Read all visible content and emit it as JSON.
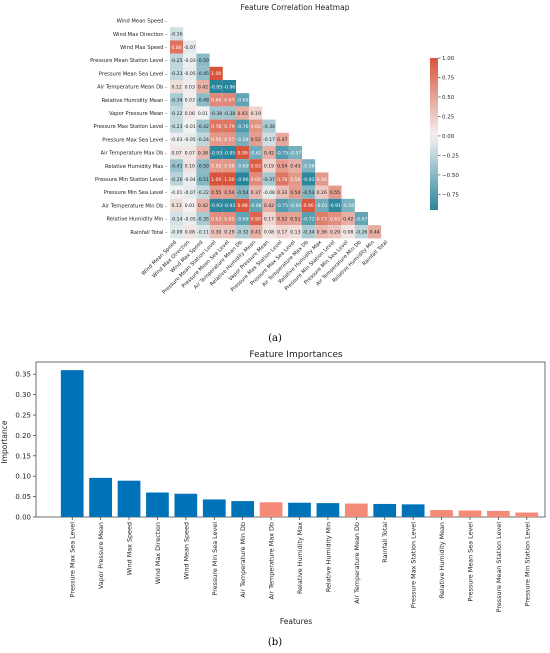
{
  "captions": {
    "a": "(a)",
    "b": "(b)"
  },
  "chart_data": [
    {
      "type": "heatmap",
      "title": "Feature Correlation Heatmap",
      "triangle": "lower",
      "colormap": {
        "low": "#1e7f97",
        "mid": "#f2f2f2",
        "high": "#d9533a"
      },
      "colorbar_range": [
        -0.95,
        1.0
      ],
      "colorbar_ticks": [
        "1.00",
        "0.75",
        "0.50",
        "0.25",
        "0.00",
        "−0.25",
        "−0.50",
        "−0.75"
      ],
      "colorbar_tick_values": [
        1.0,
        0.75,
        0.5,
        0.25,
        0.0,
        -0.25,
        -0.5,
        -0.75
      ],
      "features": [
        "Wind Mean Speed",
        "Wind Max Direction",
        "Wind Max Speed",
        "Pressure Mean Station Level",
        "Pressure Mean Sea Level",
        "Air Temperature Mean Db",
        "Relative Humidity Mean",
        "Vapor Pressure Mean",
        "Pressure Max Station Level",
        "Pressure Max Sea Level",
        "Air Temperature Max Db",
        "Relative Humidity Max",
        "Pressure Min Station Level",
        "Pressure Min Sea Level",
        "Air Temperature Min Db",
        "Relative Humidity Min",
        "Rainfall Total"
      ],
      "matrix": [
        [],
        [
          -0.16
        ],
        [
          0.8,
          -0.07
        ],
        [
          -0.25,
          -0.03,
          -0.5
        ],
        [
          -0.23,
          -0.05,
          -0.45,
          1.0
        ],
        [
          0.12,
          0.03,
          0.42,
          -0.95,
          -0.96
        ],
        [
          -0.34,
          0.03,
          -0.48,
          0.66,
          0.67,
          -0.69
        ],
        [
          -0.22,
          0.06,
          0.01,
          -0.38,
          -0.38,
          0.43,
          0.19
        ],
        [
          -0.23,
          -0.01,
          -0.42,
          0.78,
          0.79,
          -0.76,
          0.6,
          -0.34
        ],
        [
          -0.03,
          -0.05,
          -0.24,
          0.56,
          0.57,
          -0.58,
          0.52,
          -0.17,
          0.47
        ],
        [
          0.07,
          0.07,
          0.38,
          -0.93,
          -0.95,
          0.99,
          -0.62,
          0.42,
          -0.75,
          -0.57
        ],
        [
          -0.41,
          0.1,
          -0.5,
          0.56,
          0.58,
          -0.6,
          0.93,
          0.19,
          0.54,
          0.43,
          -0.56
        ],
        [
          -0.26,
          -0.04,
          -0.51,
          1.0,
          1.0,
          -0.96,
          0.66,
          -0.37,
          0.78,
          0.56,
          -0.93,
          0.56
        ],
        [
          -0.01,
          -0.07,
          -0.22,
          0.55,
          0.54,
          -0.54,
          0.37,
          -0.08,
          0.33,
          0.54,
          -0.53,
          0.26,
          0.55
        ],
        [
          0.13,
          0.01,
          0.42,
          -0.93,
          -0.93,
          0.98,
          -0.68,
          0.42,
          -0.75,
          -0.6,
          0.96,
          -0.61,
          -0.91,
          -0.56
        ],
        [
          -0.14,
          -0.05,
          -0.35,
          0.63,
          0.65,
          -0.69,
          0.9,
          0.17,
          0.52,
          0.51,
          -0.72,
          0.73,
          0.63,
          0.42,
          -0.67
        ],
        [
          -0.09,
          0.08,
          -0.11,
          0.3,
          0.29,
          -0.32,
          0.41,
          0.08,
          0.17,
          0.13,
          -0.34,
          0.36,
          0.29,
          0.08,
          -0.26,
          0.44
        ]
      ]
    },
    {
      "type": "bar",
      "title": "Feature Importances",
      "xlabel": "Features",
      "ylabel": "Importance",
      "ylim": [
        0,
        0.38
      ],
      "yticks": [
        0.0,
        0.05,
        0.1,
        0.15,
        0.2,
        0.25,
        0.3,
        0.35
      ],
      "colors": {
        "blue": "#0072b8",
        "salmon": "#f58a78"
      },
      "categories": [
        "Pressure Max Sea Level",
        "Vapor Pressure Mean",
        "Wind Max Speed",
        "Wind Max Direction",
        "Wind Mean Speed",
        "Pressure Min Sea Level",
        "Air Temperature Min Db",
        "Air Temperature Max Db",
        "Relative Humidity Max",
        "Relative Humidity Min",
        "Air Temperature Mean Db",
        "Rainfall Total",
        "Pressure Max Station Level",
        "Relative Humidity Mean",
        "Pressure Mean Sea Level",
        "Pressure Mean Station Level",
        "Pressure Min Station Level"
      ],
      "values": [
        0.36,
        0.096,
        0.089,
        0.06,
        0.057,
        0.043,
        0.039,
        0.036,
        0.035,
        0.034,
        0.033,
        0.032,
        0.031,
        0.017,
        0.016,
        0.015,
        0.011
      ],
      "bar_colors": [
        "blue",
        "blue",
        "blue",
        "blue",
        "blue",
        "blue",
        "blue",
        "salmon",
        "blue",
        "blue",
        "salmon",
        "blue",
        "blue",
        "salmon",
        "salmon",
        "salmon",
        "salmon"
      ]
    }
  ]
}
